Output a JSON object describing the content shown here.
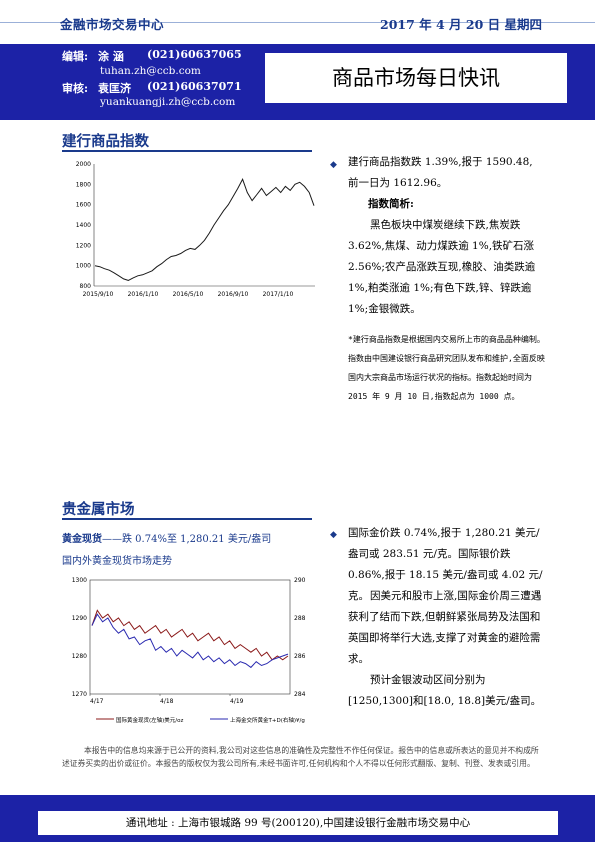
{
  "header": {
    "org": "金融市场交易中心",
    "date": "2017 年 4 月 20 日  星期四",
    "editor_label": "编辑:",
    "editor_name": "涂  涵",
    "editor_phone": "(021)60637065",
    "editor_email": "tuhan.zh@ccb.com",
    "reviewer_label": "审核:",
    "reviewer_name": "袁匡济",
    "reviewer_phone": "(021)60637071",
    "reviewer_email": "yuankuangji.zh@ccb.com",
    "title": "商品市场每日快讯"
  },
  "section1": {
    "heading": "建行商品指数",
    "para1": "建行商品指数跌 1.39%,报于 1590.48,前一日为 1612.96。",
    "subheading": "指数简析:",
    "para2": "黑色板块中煤炭继续下跌,焦炭跌 3.62%,焦煤、动力煤跌逾 1%,铁矿石涨 2.56%;农产品涨跌互现,橡胶、油类跌逾 1%,粕类涨逾 1%;有色下跌,锌、锌跌逾 1%;金银微跌。",
    "note": "*建行商品指数是根据国内交易所上市的商品品种编制。指数由中国建设银行商品研究团队发布和维护,全面反映国内大宗商品市场运行状况的指标。指数起始时间为 2015 年 9 月 10 日,指数起点为 1000 点。"
  },
  "section2": {
    "heading": "贵金属市场",
    "gold_label": "黄金现货",
    "gold_summary": "——跌 0.74%至 1,280.21 美元/盎司",
    "chart_caption": "国内外黄金现货市场走势",
    "para1": "国际金价跌 0.74%,报于 1,280.21 美元/盎司或 283.51 元/克。国际银价跌 0.86%,报于 18.15 美元/盎司或 4.02 元/克。",
    "para2": "因美元和股市上涨,国际金价周三遭遇获利了结而下跌,但朝鲜紧张局势及法国和英国即将举行大选,支撑了对黄金的避险需求。",
    "para3": "预计金银波动区间分别为[1250,1300]和[18.0, 18.8]美元/盎司。"
  },
  "disclaimer": "本报告中的信息均来源于已公开的资料,我公司对这些信息的准确性及完整性不作任何保证。报告中的信息或所表达的意见并不构成所述证券买卖的出价或征价。本报告的版权仅为我公司所有,未经书面许可,任何机构和个人不得以任何形式翻版、复制、刊登、发表或引用。",
  "footer": "通讯地址 : 上海市银城路 99 号(200120),中国建设银行金融市场交易中心",
  "colors": {
    "brand_blue": "#1c22a6",
    "heading_blue": "#1a3a8c",
    "gold_series": "#8b1a1a",
    "domestic_series": "#2a2ab0"
  },
  "chart_data": [
    {
      "type": "line",
      "title": "",
      "x_ticks": [
        "2015/9/10",
        "2016/1/10",
        "2016/5/10",
        "2016/9/10",
        "2017/1/10"
      ],
      "y_ticks": [
        800,
        1000,
        1200,
        1400,
        1600,
        1800,
        2000
      ],
      "ylim": [
        800,
        2000
      ],
      "series": [
        {
          "values": [
            1000,
            990,
            970,
            955,
            930,
            900,
            870,
            855,
            880,
            900,
            910,
            930,
            950,
            990,
            1020,
            1060,
            1090,
            1100,
            1120,
            1150,
            1170,
            1160,
            1200,
            1250,
            1320,
            1400,
            1470,
            1540,
            1600,
            1680,
            1760,
            1850,
            1720,
            1640,
            1700,
            1760,
            1690,
            1730,
            1770,
            1720,
            1780,
            1740,
            1800,
            1820,
            1780,
            1720,
            1590
          ]
        }
      ]
    },
    {
      "type": "line",
      "x_ticks": [
        "4/17",
        "4/18",
        "4/19"
      ],
      "y_left_ticks": [
        1270,
        1280,
        1290,
        1300
      ],
      "y_right_ticks": [
        284,
        286,
        288,
        290
      ],
      "ylim_left": [
        1270,
        1300
      ],
      "ylim_right": [
        284,
        290
      ],
      "series": [
        {
          "name": "国际黄金现货(左轴)美元/oz",
          "axis": "left",
          "values": [
            1288,
            1292,
            1290,
            1291,
            1289,
            1290,
            1288,
            1289,
            1287,
            1288,
            1286,
            1287,
            1288,
            1286,
            1287,
            1285,
            1286,
            1287,
            1285,
            1286,
            1284,
            1285,
            1286,
            1284,
            1285,
            1283,
            1284,
            1282,
            1283,
            1282,
            1281,
            1282,
            1280,
            1281,
            1279,
            1280,
            1279,
            1280
          ]
        },
        {
          "name": "上海金交所黄金T+D(右轴)¥/g",
          "axis": "right",
          "values": [
            287.6,
            288.2,
            287.8,
            288.0,
            287.5,
            287.2,
            287.4,
            286.9,
            287.0,
            286.6,
            286.8,
            286.9,
            286.3,
            286.5,
            286.2,
            286.4,
            286.0,
            286.3,
            286.1,
            285.9,
            286.2,
            285.8,
            286.0,
            285.7,
            285.9,
            285.6,
            285.8,
            285.5,
            285.7,
            285.6,
            285.4,
            285.7,
            285.5,
            285.6,
            285.8,
            285.9,
            286.0,
            286.1
          ]
        }
      ]
    }
  ]
}
